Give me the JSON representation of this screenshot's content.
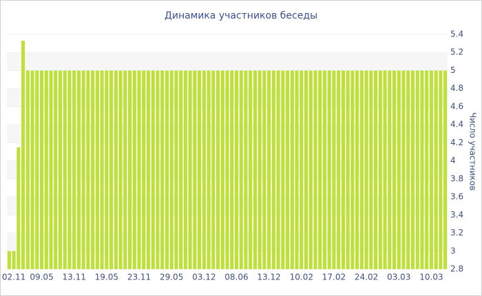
{
  "chart_data": {
    "type": "bar",
    "title": "Динамика участников беседы",
    "y_label": "Число участников",
    "categories": [
      null,
      "02.11",
      null,
      null,
      null,
      null,
      null,
      "09.05",
      null,
      null,
      null,
      null,
      null,
      null,
      "13.11",
      null,
      null,
      null,
      null,
      null,
      null,
      "19.05",
      null,
      null,
      null,
      null,
      null,
      null,
      "23.11",
      null,
      null,
      null,
      null,
      null,
      null,
      "29.05",
      null,
      null,
      null,
      null,
      null,
      null,
      "03.12",
      null,
      null,
      null,
      null,
      null,
      null,
      "08.06",
      null,
      null,
      null,
      null,
      null,
      null,
      "13.12",
      null,
      null,
      null,
      null,
      null,
      null,
      "10.02",
      null,
      null,
      null,
      null,
      null,
      null,
      "17.02",
      null,
      null,
      null,
      null,
      null,
      null,
      "24.02",
      null,
      null,
      null,
      null,
      null,
      null,
      "03.03",
      null,
      null,
      null,
      null,
      null,
      null,
      "10.03",
      null,
      null,
      null
    ],
    "values": [
      3,
      3,
      4.15,
      5.33,
      5,
      5,
      5,
      5,
      5,
      5,
      5,
      5,
      5,
      5,
      5,
      5,
      5,
      5,
      5,
      5,
      5,
      5,
      5,
      5,
      5,
      5,
      5,
      5,
      5,
      5,
      5,
      5,
      5,
      5,
      5,
      5,
      5,
      5,
      5,
      5,
      5,
      5,
      5,
      5,
      5,
      5,
      5,
      5,
      5,
      5,
      5,
      5,
      5,
      5,
      5,
      5,
      5,
      5,
      5,
      5,
      5,
      5,
      5,
      5,
      5,
      5,
      5,
      5,
      5,
      5,
      5,
      5,
      5,
      5,
      5,
      5,
      5,
      5,
      5,
      5,
      5,
      5,
      5,
      5,
      5,
      5,
      5,
      5,
      5,
      5,
      5,
      5,
      5,
      5,
      5
    ],
    "color": "#bde03a",
    "ylim": [
      2.8,
      5.4
    ],
    "yticks": [
      2.8,
      3,
      3.2,
      3.4,
      3.6,
      3.8,
      4,
      4.2,
      4.4,
      4.6,
      4.8,
      5,
      5.2,
      5.4
    ],
    "grid": true
  }
}
